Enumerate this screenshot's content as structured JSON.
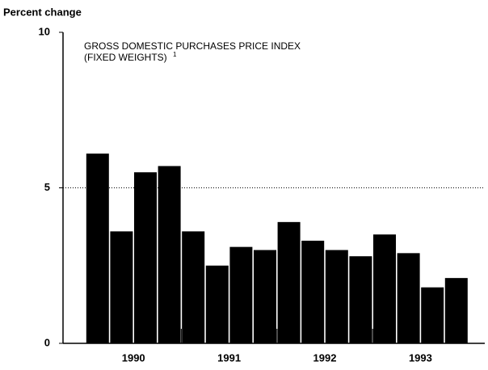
{
  "chart_data": {
    "type": "bar",
    "title": "GROSS DOMESTIC PURCHASES PRICE INDEX",
    "subtitle": "(FIXED WEIGHTS)",
    "footnote_marker": "1",
    "y_label": "Percent change",
    "categories": [
      null,
      null,
      null,
      null,
      null,
      null,
      null,
      null,
      null,
      null,
      null,
      null,
      null,
      null,
      null,
      null
    ],
    "x_groups": [
      "1990",
      "1991",
      "1992",
      "1993"
    ],
    "values": [
      6.1,
      3.6,
      5.5,
      5.7,
      3.6,
      2.5,
      3.1,
      3.0,
      3.9,
      3.3,
      3.0,
      2.8,
      3.5,
      2.9,
      1.8,
      2.1
    ],
    "color": "#000000",
    "ylim": [
      0,
      10
    ],
    "yticks": [
      0,
      5,
      10
    ],
    "grid": true
  }
}
